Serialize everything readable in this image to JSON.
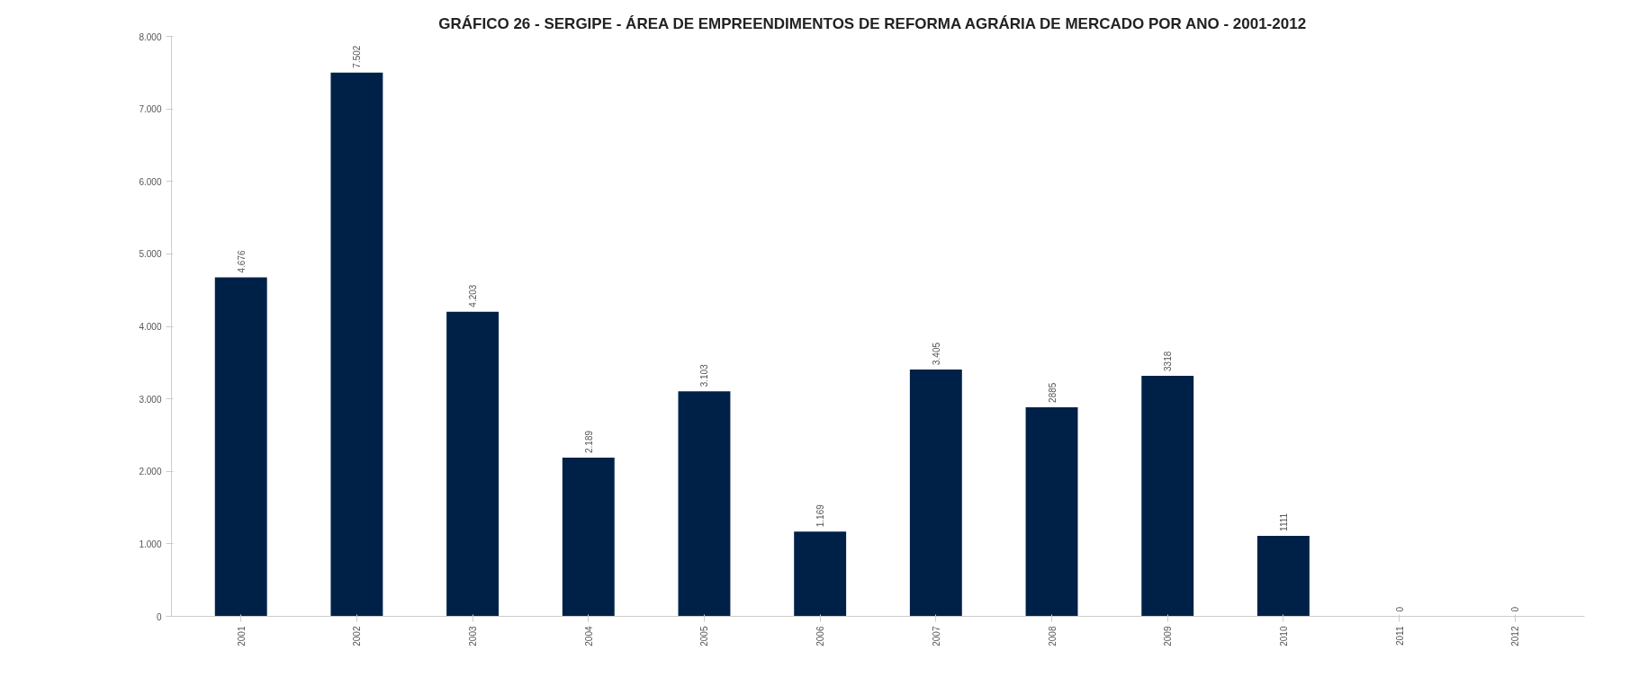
{
  "chart_data": {
    "type": "bar",
    "title": "GRÁFICO 26 - SERGIPE - ÁREA DE EMPREENDIMENTOS  DE REFORMA AGRÁRIA DE MERCADO  POR ANO - 2001-2012",
    "categories": [
      "2001",
      "2002",
      "2003",
      "2004",
      "2005",
      "2006",
      "2007",
      "2008",
      "2009",
      "2010",
      "2011",
      "2012"
    ],
    "values": [
      4676,
      7502,
      4203,
      2189,
      3103,
      1169,
      3405,
      2885,
      3318,
      1111,
      0,
      0
    ],
    "value_labels": [
      "4.676",
      "7.502",
      "4.203",
      "2.189",
      "3.103",
      "1.169",
      "3.405",
      "2885",
      "3318",
      "1111",
      "0",
      "0"
    ],
    "color": "#002147",
    "ylim": [
      0,
      8000
    ],
    "yticks": [
      {
        "value": 0,
        "label": "0"
      },
      {
        "value": 1000,
        "label": "1.000"
      },
      {
        "value": 2000,
        "label": "2.000"
      },
      {
        "value": 3000,
        "label": "3.000"
      },
      {
        "value": 4000,
        "label": "4.000"
      },
      {
        "value": 5000,
        "label": "5.000"
      },
      {
        "value": 6000,
        "label": "6.000"
      },
      {
        "value": 7000,
        "label": "7.000"
      },
      {
        "value": 8000,
        "label": "8.000"
      }
    ],
    "grid": false
  }
}
